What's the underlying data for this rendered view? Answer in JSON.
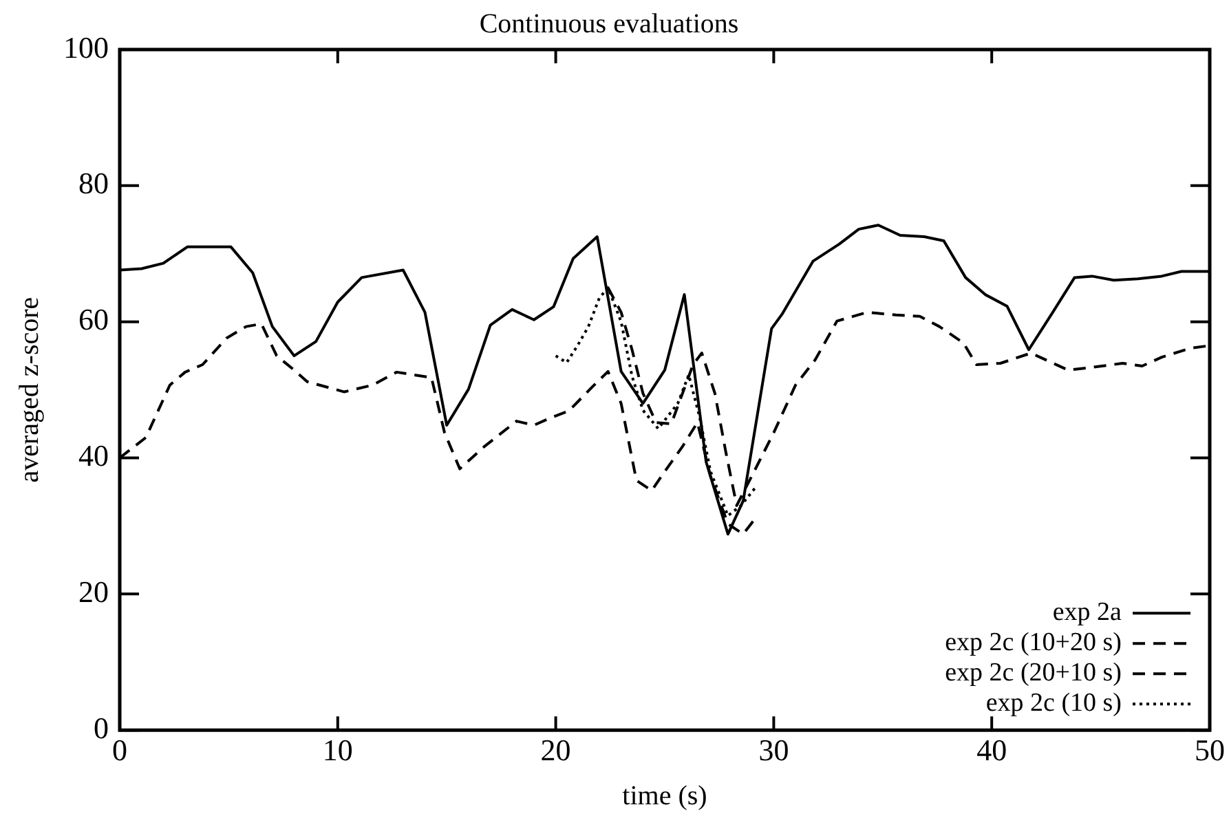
{
  "chart_data": {
    "type": "line",
    "title": "Continuous evaluations",
    "xlabel": "time (s)",
    "ylabel": "averaged z-score",
    "xlim": [
      0,
      50
    ],
    "xticks": [
      0,
      10,
      20,
      30,
      40,
      50
    ],
    "ylim": [
      0,
      100
    ],
    "yticks": [
      0,
      20,
      40,
      60,
      80,
      100
    ],
    "grid": false,
    "legend": "bottom right",
    "marker": "none",
    "series": [
      {
        "name": "exp 2a",
        "color": "#000000",
        "line_style": "solid",
        "x": [
          0,
          1,
          2,
          3.1,
          5.1,
          6.1,
          7,
          8,
          9,
          10,
          11.1,
          13,
          14,
          15,
          16,
          17,
          18,
          19,
          19.9,
          20.8,
          21.9,
          23,
          24,
          25,
          25.9,
          26.9,
          27.9,
          28.6,
          29.9,
          30.4,
          31.8,
          33,
          33.9,
          34.8,
          35.8,
          36.9,
          37.8,
          38.8,
          39.7,
          40.7,
          41.7,
          42.8,
          43.8,
          44.6,
          45.6,
          46.7,
          47.8,
          48.7,
          50
        ],
        "values": [
          67.6,
          67.8,
          68.6,
          71,
          71,
          67.2,
          59.3,
          55,
          57.1,
          62.9,
          66.5,
          67.6,
          61.4,
          44.8,
          50.1,
          59.5,
          61.8,
          60.3,
          62.2,
          69.3,
          72.5,
          52.7,
          48,
          52.9,
          64,
          39.4,
          28.8,
          33.7,
          59,
          61.2,
          68.9,
          71.4,
          73.6,
          74.2,
          72.7,
          72.5,
          71.9,
          66.5,
          64,
          62.3,
          55.9,
          61.4,
          66.5,
          66.7,
          66.1,
          66.3,
          66.7,
          67.4,
          67.4
        ]
      },
      {
        "name": "exp 2c (10+20 s)",
        "color": "#000000",
        "line_style": "dashed",
        "x": [
          22.4,
          23,
          23.5,
          24,
          24.6,
          25.3,
          26.3,
          26.7,
          27.3,
          27.8,
          28.3,
          29.1,
          30,
          31,
          31.9,
          32.9,
          34.3,
          35.6,
          36.7,
          37.6,
          38.7,
          39.3,
          40.4,
          41.8,
          43.5,
          44.6,
          46,
          46.9,
          47.8,
          49.1,
          50
        ],
        "values": [
          65,
          61.4,
          55.9,
          49.5,
          45.2,
          45,
          53.7,
          55.4,
          49.5,
          40.9,
          33,
          38,
          43.7,
          50.7,
          54.4,
          60.1,
          61.4,
          61,
          60.8,
          59.3,
          56.9,
          53.7,
          53.9,
          55.4,
          52.9,
          53.3,
          53.9,
          53.5,
          54.8,
          56.1,
          56.5
        ]
      },
      {
        "name": "exp 2c (20+10 s)",
        "color": "#000000",
        "line_style": "dashed",
        "x": [
          0,
          1.2,
          2.3,
          3,
          3.8,
          4.9,
          5.8,
          6.5,
          7.2,
          8,
          8.6,
          10.3,
          11.6,
          12.7,
          14.3,
          14.9,
          15.6,
          16.7,
          18.2,
          19,
          19.7,
          20.6,
          21.7,
          22.4,
          23,
          23.7,
          24.4,
          25,
          25.8,
          26.5,
          27.1,
          27.9,
          28.6,
          29.2
        ],
        "values": [
          40,
          43,
          50.7,
          52.6,
          53.7,
          57.6,
          59.3,
          59.7,
          55,
          52.9,
          51.2,
          49.7,
          50.7,
          52.6,
          51.8,
          43.7,
          38.4,
          41.6,
          45.4,
          44.8,
          45.8,
          46.9,
          50.5,
          52.7,
          48,
          36.7,
          35.2,
          38,
          41.6,
          45.2,
          37.3,
          30.3,
          28.8,
          31.3
        ]
      },
      {
        "name": "exp 2c (10 s)",
        "color": "#000000",
        "line_style": "dotted",
        "x": [
          20,
          20.5,
          21,
          21.5,
          22,
          22.4,
          23,
          23.5,
          24,
          24.7,
          25.6,
          26.1,
          26.6,
          27.1,
          27.9,
          28.5,
          29.2
        ],
        "values": [
          55,
          54,
          56.5,
          59.3,
          63.5,
          65,
          60,
          52,
          47,
          44.3,
          48,
          52.2,
          46,
          38,
          31.5,
          33,
          35.8
        ]
      }
    ]
  }
}
